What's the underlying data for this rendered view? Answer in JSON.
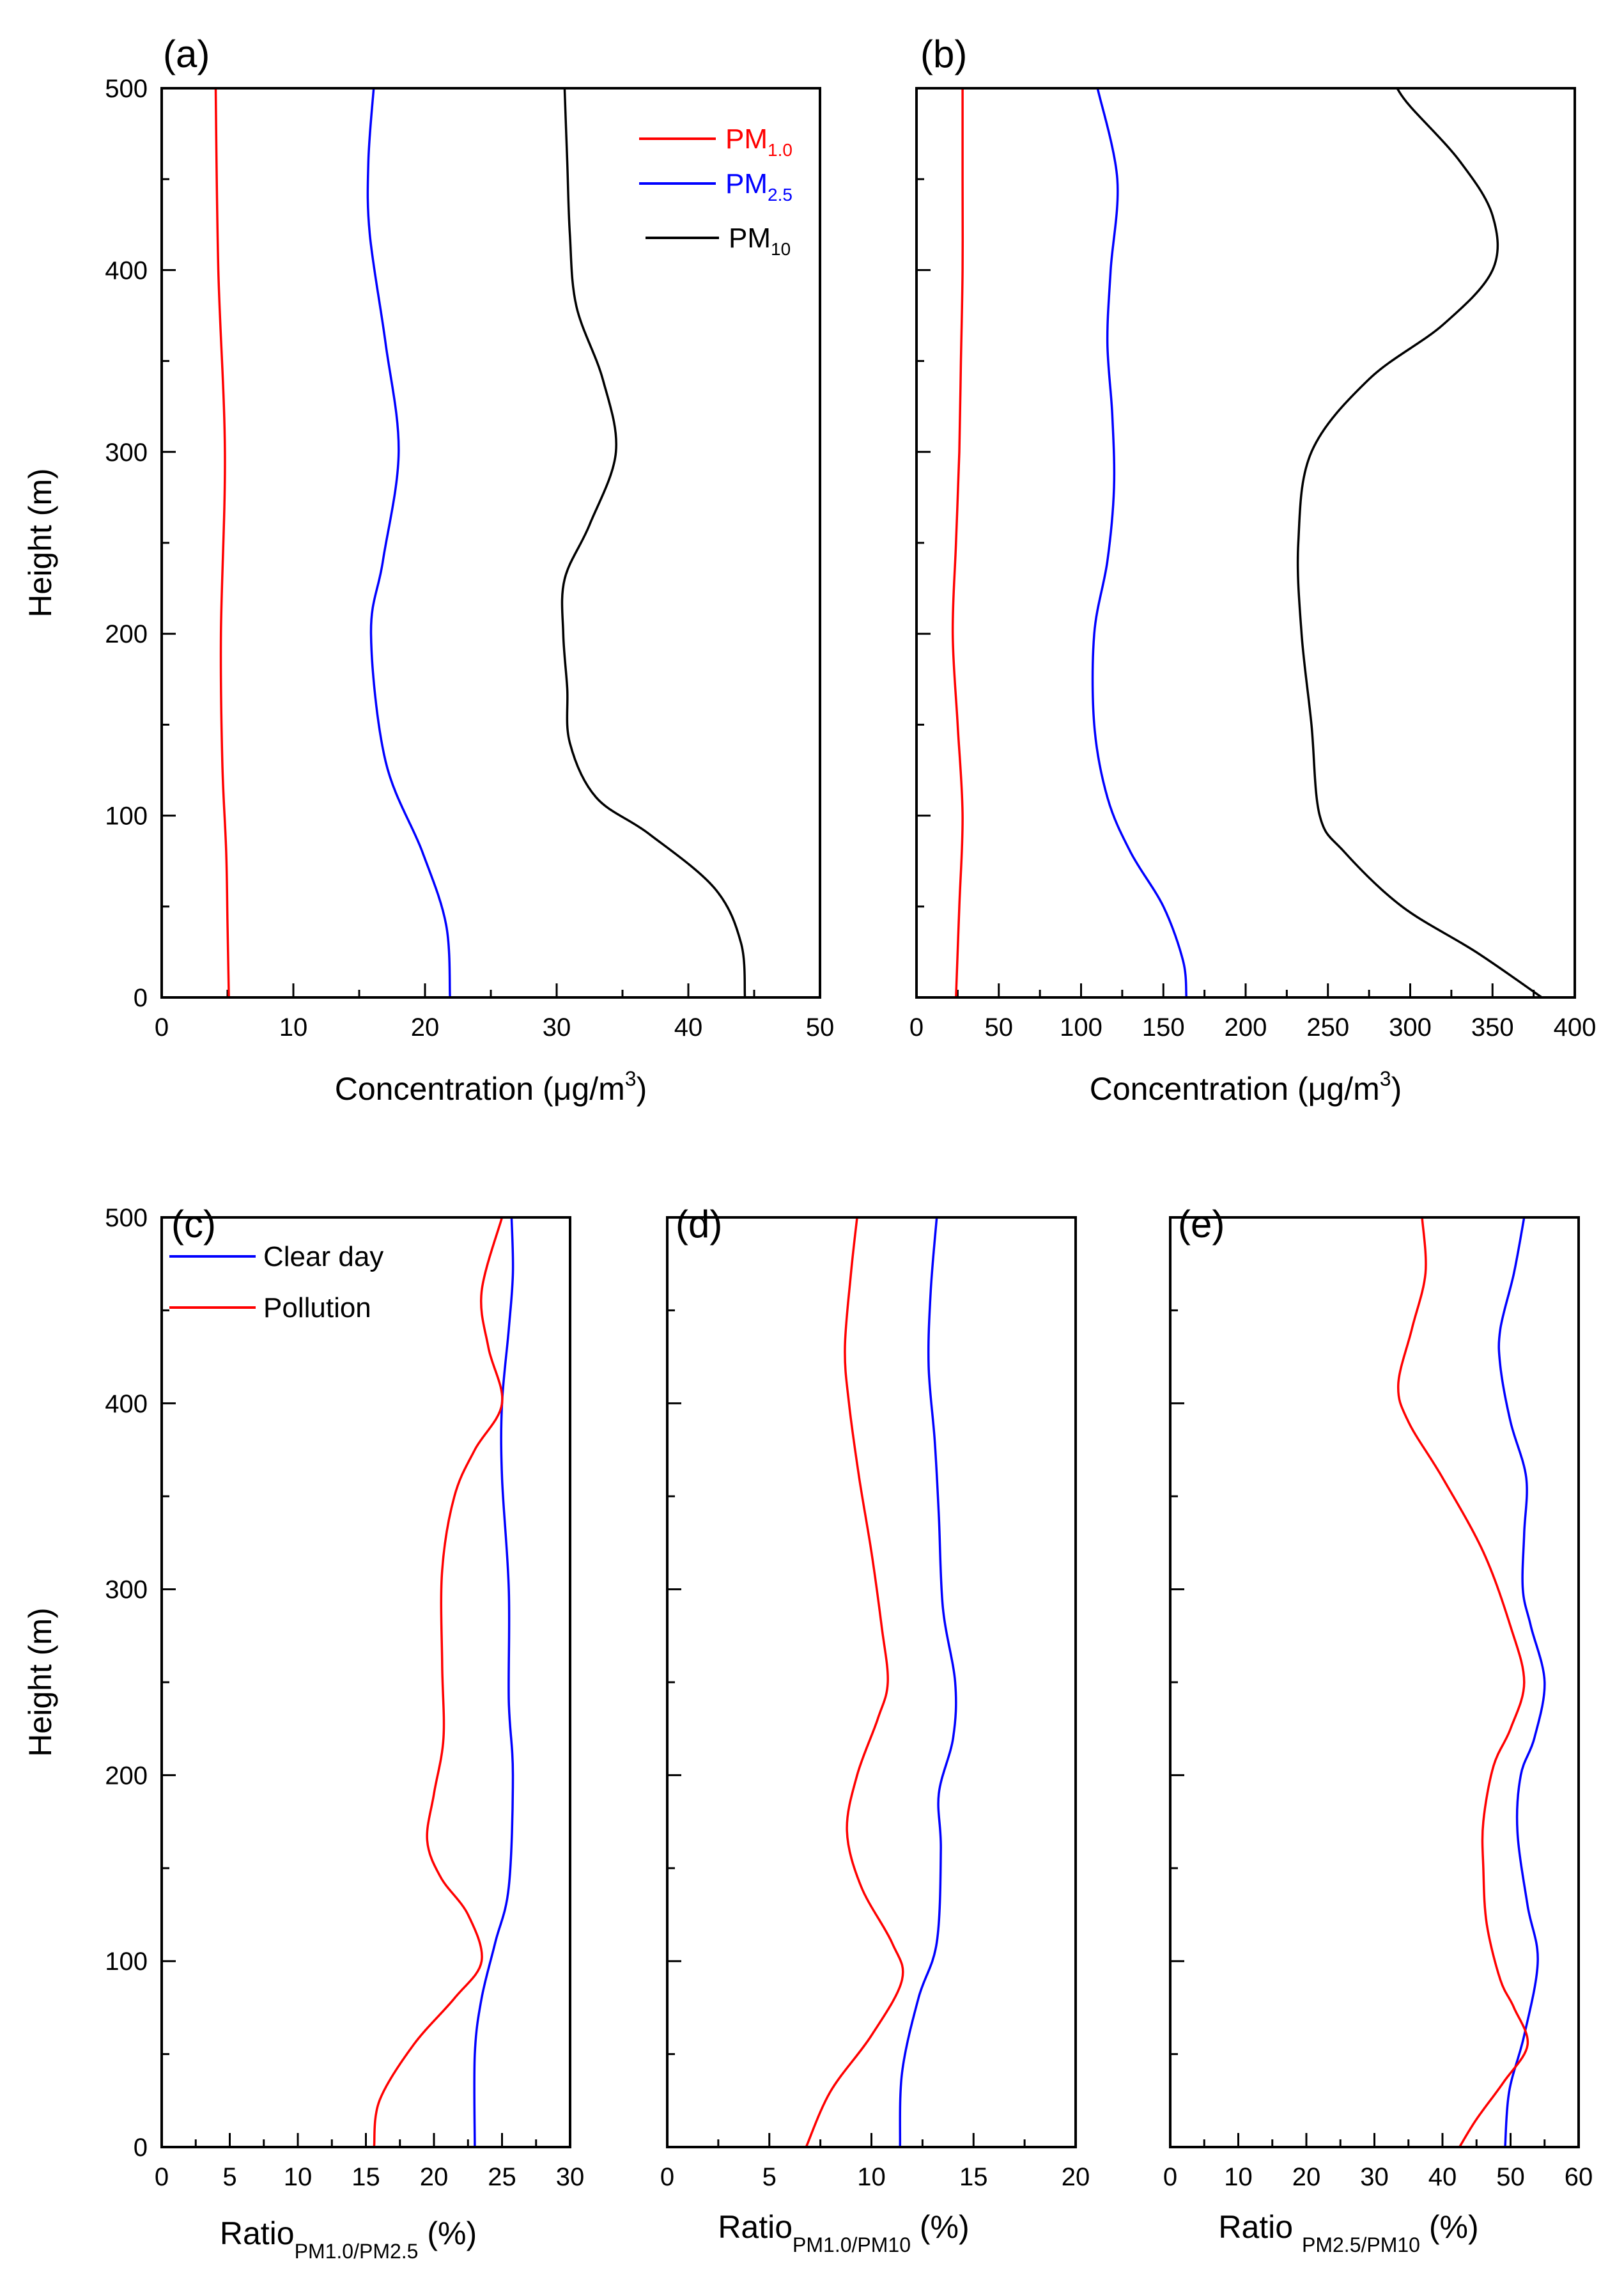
{
  "chart_data": [
    {
      "panel": "(a)",
      "type": "line",
      "ylabel": "Height (m)",
      "xlabel": {
        "main": "Concentration (μg/m",
        "sup": "3",
        "tail": ")"
      },
      "xlim": [
        0,
        50
      ],
      "ylim": [
        0,
        500
      ],
      "xticks": [
        0,
        10,
        20,
        30,
        40,
        50
      ],
      "yticks": [
        0,
        100,
        200,
        300,
        400,
        500
      ],
      "legend_position": "top-right",
      "series": [
        {
          "name": "PM",
          "sub": "1.0",
          "color": "#ff0000",
          "points": [
            [
              5.1,
              0
            ],
            [
              5.0,
              40
            ],
            [
              4.9,
              80
            ],
            [
              4.6,
              130
            ],
            [
              4.5,
              200
            ],
            [
              4.8,
              300
            ],
            [
              4.3,
              400
            ],
            [
              4.1,
              500
            ]
          ]
        },
        {
          "name": "PM",
          "sub": "2.5",
          "color": "#0000ff",
          "points": [
            [
              21.9,
              0
            ],
            [
              21.6,
              40
            ],
            [
              19.8,
              80
            ],
            [
              17.0,
              130
            ],
            [
              15.9,
              200
            ],
            [
              16.8,
              240
            ],
            [
              18.0,
              300
            ],
            [
              17.0,
              360
            ],
            [
              15.8,
              420
            ],
            [
              15.7,
              460
            ],
            [
              16.1,
              500
            ]
          ]
        },
        {
          "name": "PM",
          "sub": "10",
          "color": "#000000",
          "points": [
            [
              44.3,
              0
            ],
            [
              44.0,
              30
            ],
            [
              42.0,
              60
            ],
            [
              37.0,
              90
            ],
            [
              33.0,
              110
            ],
            [
              31.0,
              140
            ],
            [
              30.8,
              170
            ],
            [
              30.5,
              200
            ],
            [
              30.6,
              230
            ],
            [
              32.5,
              260
            ],
            [
              34.5,
              300
            ],
            [
              33.5,
              340
            ],
            [
              31.5,
              380
            ],
            [
              31.0,
              420
            ],
            [
              30.8,
              460
            ],
            [
              30.6,
              500
            ]
          ]
        }
      ]
    },
    {
      "panel": "(b)",
      "type": "line",
      "xlabel": {
        "main": "Concentration (μg/m",
        "sup": "3",
        "tail": ")"
      },
      "xlim": [
        0,
        400
      ],
      "ylim": [
        0,
        500
      ],
      "xticks": [
        0,
        50,
        100,
        150,
        200,
        250,
        300,
        350,
        400
      ],
      "yticks": [
        0,
        100,
        200,
        300,
        400,
        500
      ],
      "series": [
        {
          "name": "PM",
          "sub": "1.0",
          "color": "#ff0000",
          "points": [
            [
              24,
              0
            ],
            [
              26,
              50
            ],
            [
              28,
              100
            ],
            [
              25,
              150
            ],
            [
              22,
              200
            ],
            [
              24,
              250
            ],
            [
              26,
              300
            ],
            [
              27,
              350
            ],
            [
              28,
              400
            ],
            [
              28,
              450
            ],
            [
              28,
              500
            ]
          ]
        },
        {
          "name": "PM",
          "sub": "2.5",
          "color": "#0000ff",
          "points": [
            [
              164,
              0
            ],
            [
              162,
              20
            ],
            [
              150,
              50
            ],
            [
              130,
              80
            ],
            [
              116,
              110
            ],
            [
              108,
              150
            ],
            [
              108,
              200
            ],
            [
              116,
              240
            ],
            [
              120,
              280
            ],
            [
              119,
              320
            ],
            [
              116,
              360
            ],
            [
              118,
              400
            ],
            [
              122,
              450
            ],
            [
              110,
              500
            ]
          ]
        },
        {
          "name": "PM",
          "sub": "10",
          "color": "#000000",
          "points": [
            [
              380,
              0
            ],
            [
              340,
              25
            ],
            [
              295,
              50
            ],
            [
              260,
              80
            ],
            [
              245,
              100
            ],
            [
              240,
              150
            ],
            [
              234,
              200
            ],
            [
              232,
              250
            ],
            [
              240,
              300
            ],
            [
              275,
              340
            ],
            [
              320,
              370
            ],
            [
              350,
              400
            ],
            [
              350,
              430
            ],
            [
              330,
              460
            ],
            [
              300,
              490
            ],
            [
              292,
              500
            ]
          ]
        }
      ]
    },
    {
      "panel": "(c)",
      "type": "line",
      "ylabel": "Height (m)",
      "xlabel": {
        "main": "Ratio",
        "sub": "PM1.0/PM2.5",
        "tail": " (%)"
      },
      "xlim": [
        0,
        30
      ],
      "ylim": [
        0,
        500
      ],
      "xticks": [
        0,
        5,
        10,
        15,
        20,
        25,
        30
      ],
      "yticks": [
        0,
        100,
        200,
        300,
        400,
        500
      ],
      "legend_position": "top-left",
      "series": [
        {
          "name": "Clear day",
          "color": "#0000ff",
          "points": [
            [
              23.0,
              0
            ],
            [
              23.0,
              50
            ],
            [
              23.5,
              80
            ],
            [
              24.5,
              110
            ],
            [
              25.5,
              140
            ],
            [
              25.8,
              200
            ],
            [
              25.5,
              240
            ],
            [
              25.5,
              300
            ],
            [
              25.0,
              360
            ],
            [
              25.0,
              400
            ],
            [
              25.5,
              440
            ],
            [
              25.8,
              470
            ],
            [
              25.7,
              500
            ]
          ]
        },
        {
          "name": "Pollution",
          "color": "#ff0000",
          "points": [
            [
              15.6,
              0
            ],
            [
              16.0,
              25
            ],
            [
              18.5,
              55
            ],
            [
              21.5,
              80
            ],
            [
              23.5,
              100
            ],
            [
              22.5,
              125
            ],
            [
              20.5,
              145
            ],
            [
              19.5,
              165
            ],
            [
              20.0,
              190
            ],
            [
              20.7,
              220
            ],
            [
              20.6,
              260
            ],
            [
              20.6,
              310
            ],
            [
              21.5,
              350
            ],
            [
              23.0,
              375
            ],
            [
              25.0,
              400
            ],
            [
              24.0,
              430
            ],
            [
              23.5,
              460
            ],
            [
              25.0,
              500
            ]
          ]
        }
      ]
    },
    {
      "panel": "(d)",
      "type": "line",
      "xlabel": {
        "main": "Ratio",
        "sub": "PM1.0/PM10",
        "tail": " (%)"
      },
      "xlim": [
        0,
        20
      ],
      "ylim": [
        0,
        500
      ],
      "xticks": [
        0,
        5,
        10,
        15,
        20
      ],
      "yticks": [
        0,
        100,
        200,
        300,
        400,
        500
      ],
      "series": [
        {
          "name": "Clear day",
          "color": "#0000ff",
          "points": [
            [
              11.4,
              0
            ],
            [
              11.5,
              40
            ],
            [
              12.3,
              80
            ],
            [
              13.2,
              110
            ],
            [
              13.4,
              160
            ],
            [
              13.3,
              190
            ],
            [
              14.0,
              220
            ],
            [
              14.1,
              250
            ],
            [
              13.5,
              290
            ],
            [
              13.3,
              340
            ],
            [
              13.1,
              380
            ],
            [
              12.8,
              420
            ],
            [
              12.9,
              460
            ],
            [
              13.2,
              500
            ]
          ]
        },
        {
          "name": "Pollution",
          "color": "#ff0000",
          "points": [
            [
              6.8,
              0
            ],
            [
              8.0,
              30
            ],
            [
              10.0,
              60
            ],
            [
              11.5,
              90
            ],
            [
              11.0,
              110
            ],
            [
              9.5,
              140
            ],
            [
              8.8,
              170
            ],
            [
              9.3,
              200
            ],
            [
              10.3,
              230
            ],
            [
              10.8,
              250
            ],
            [
              10.5,
              280
            ],
            [
              10.0,
              320
            ],
            [
              9.4,
              360
            ],
            [
              8.9,
              400
            ],
            [
              8.7,
              430
            ],
            [
              9.0,
              470
            ],
            [
              9.3,
              500
            ]
          ]
        }
      ]
    },
    {
      "panel": "(e)",
      "type": "line",
      "xlabel": {
        "main": "Ratio ",
        "sub": "PM2.5/PM10",
        "tail": " (%)"
      },
      "xlim": [
        0,
        60
      ],
      "ylim": [
        0,
        500
      ],
      "xticks": [
        0,
        10,
        20,
        30,
        40,
        50,
        60
      ],
      "yticks": [
        0,
        100,
        200,
        300,
        400,
        500
      ],
      "series": [
        {
          "name": "Clear day",
          "color": "#0000ff",
          "points": [
            [
              49.2,
              0
            ],
            [
              49.8,
              30
            ],
            [
              52.0,
              60
            ],
            [
              54.0,
              100
            ],
            [
              52.5,
              130
            ],
            [
              51.0,
              170
            ],
            [
              51.5,
              200
            ],
            [
              53.5,
              220
            ],
            [
              55.0,
              250
            ],
            [
              53.0,
              280
            ],
            [
              51.8,
              300
            ],
            [
              52.0,
              330
            ],
            [
              52.3,
              360
            ],
            [
              50.0,
              390
            ],
            [
              48.5,
              420
            ],
            [
              48.5,
              440
            ],
            [
              50.5,
              470
            ],
            [
              52.0,
              500
            ]
          ]
        },
        {
          "name": "Pollution",
          "color": "#ff0000",
          "points": [
            [
              42.5,
              0
            ],
            [
              45.0,
              15
            ],
            [
              49.0,
              35
            ],
            [
              52.5,
              55
            ],
            [
              50.5,
              75
            ],
            [
              48.5,
              90
            ],
            [
              46.5,
              120
            ],
            [
              46.0,
              150
            ],
            [
              46.0,
              175
            ],
            [
              47.5,
              205
            ],
            [
              50.0,
              225
            ],
            [
              52.0,
              250
            ],
            [
              50.0,
              280
            ],
            [
              46.0,
              320
            ],
            [
              40.0,
              360
            ],
            [
              35.0,
              390
            ],
            [
              33.5,
              410
            ],
            [
              35.5,
              440
            ],
            [
              37.5,
              470
            ],
            [
              37.0,
              500
            ]
          ]
        }
      ]
    }
  ]
}
